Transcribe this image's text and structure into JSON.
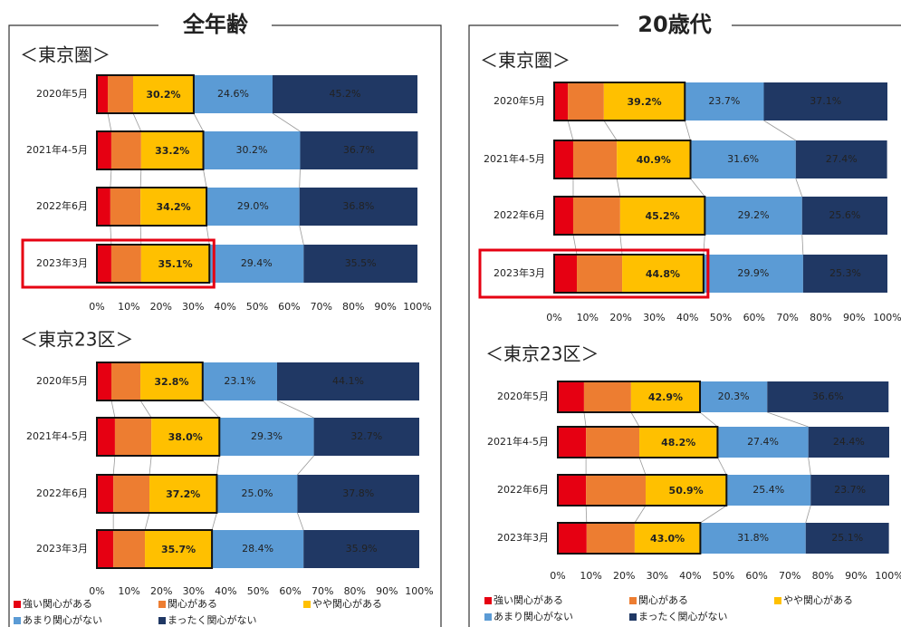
{
  "panel_titles": [
    "全年齢",
    "20歳代"
  ],
  "chart_data": [
    {
      "type": "stacked-bar-horizontal",
      "title": "＜東京圏＞",
      "highlight": 3,
      "categories": [
        "2020年5月",
        "2021年4-5月",
        "2022年6月",
        "2023年3月"
      ],
      "series": [
        {
          "name": "強い関心がある",
          "color": "#e60012",
          "values": [
            3.4,
            4.5,
            4.2,
            4.5
          ]
        },
        {
          "name": "関心がある",
          "color": "#ed7d31",
          "values": [
            7.9,
            9.3,
            9.4,
            9.3
          ]
        },
        {
          "name": "やや関心がある",
          "color": "#ffc000",
          "values": [
            18.9,
            19.4,
            20.6,
            21.3
          ]
        },
        {
          "name": "あまり関心がない",
          "color": "#5b9bd5",
          "values": [
            24.6,
            30.2,
            29.0,
            29.4
          ],
          "value_labels": [
            "24.6%",
            "30.2%",
            "29.0%",
            "29.4%"
          ]
        },
        {
          "name": "まったく関心がない",
          "color": "#203864",
          "values": [
            45.2,
            36.7,
            36.8,
            35.5
          ],
          "value_labels": [
            "45.2%",
            "36.7%",
            "36.8%",
            "35.5%"
          ]
        }
      ],
      "totals": {
        "values": [
          30.2,
          33.2,
          34.2,
          35.1
        ],
        "value_labels": [
          "30.2%",
          "33.2%",
          "34.2%",
          "35.1%"
        ]
      },
      "xlim": [
        0,
        100
      ],
      "xticks": [
        {
          "value": 0,
          "label": "0%"
        },
        {
          "value": 10,
          "label": "10%"
        },
        {
          "value": 20,
          "label": "20%"
        },
        {
          "value": 30,
          "label": "30%"
        },
        {
          "value": 40,
          "label": "40%"
        },
        {
          "value": 50,
          "label": "50%"
        },
        {
          "value": 60,
          "label": "60%"
        },
        {
          "value": 70,
          "label": "70%"
        },
        {
          "value": 80,
          "label": "80%"
        },
        {
          "value": 90,
          "label": "90%"
        },
        {
          "value": 100,
          "label": "100%"
        }
      ]
    },
    {
      "type": "stacked-bar-horizontal",
      "title": "＜東京23区＞",
      "categories": [
        "2020年5月",
        "2021年4-5月",
        "2022年6月",
        "2023年3月"
      ],
      "series": [
        {
          "name": "強い関心がある",
          "color": "#e60012",
          "values": [
            4.5,
            5.6,
            5.1,
            5.1
          ]
        },
        {
          "name": "関心がある",
          "color": "#ed7d31",
          "values": [
            9.0,
            11.3,
            11.2,
            9.8
          ]
        },
        {
          "name": "やや関心がある",
          "color": "#ffc000",
          "values": [
            19.3,
            21.1,
            20.9,
            20.8
          ]
        },
        {
          "name": "あまり関心がない",
          "color": "#5b9bd5",
          "values": [
            23.1,
            29.3,
            25.0,
            28.4
          ],
          "value_labels": [
            "23.1%",
            "29.3%",
            "25.0%",
            "28.4%"
          ]
        },
        {
          "name": "まったく関心がない",
          "color": "#203864",
          "values": [
            44.1,
            32.7,
            37.8,
            35.9
          ],
          "value_labels": [
            "44.1%",
            "32.7%",
            "37.8%",
            "35.9%"
          ]
        }
      ],
      "totals": {
        "values": [
          32.8,
          38.0,
          37.2,
          35.7
        ],
        "value_labels": [
          "32.8%",
          "38.0%",
          "37.2%",
          "35.7%"
        ]
      },
      "xlim": [
        0,
        100
      ],
      "xticks": [
        {
          "value": 0,
          "label": "0%"
        },
        {
          "value": 10,
          "label": "10%"
        },
        {
          "value": 20,
          "label": "20%"
        },
        {
          "value": 30,
          "label": "30%"
        },
        {
          "value": 40,
          "label": "40%"
        },
        {
          "value": 50,
          "label": "50%"
        },
        {
          "value": 60,
          "label": "60%"
        },
        {
          "value": 70,
          "label": "70%"
        },
        {
          "value": 80,
          "label": "80%"
        },
        {
          "value": 90,
          "label": "90%"
        },
        {
          "value": 100,
          "label": "100%"
        }
      ]
    },
    {
      "type": "stacked-bar-horizontal",
      "title": "＜東京圏＞",
      "highlight": 3,
      "categories": [
        "2020年5月",
        "2021年4-5月",
        "2022年6月",
        "2023年3月"
      ],
      "series": [
        {
          "name": "強い関心がある",
          "color": "#e60012",
          "values": [
            4.1,
            5.7,
            5.7,
            6.8
          ]
        },
        {
          "name": "関心がある",
          "color": "#ed7d31",
          "values": [
            10.8,
            13.1,
            14.1,
            13.6
          ]
        },
        {
          "name": "やや関心がある",
          "color": "#ffc000",
          "values": [
            24.3,
            22.1,
            25.4,
            24.4
          ]
        },
        {
          "name": "あまり関心がない",
          "color": "#5b9bd5",
          "values": [
            23.7,
            31.6,
            29.2,
            29.9
          ],
          "value_labels": [
            "23.7%",
            "31.6%",
            "29.2%",
            "29.9%"
          ]
        },
        {
          "name": "まったく関心がない",
          "color": "#203864",
          "values": [
            37.1,
            27.4,
            25.6,
            25.3
          ],
          "value_labels": [
            "37.1%",
            "27.4%",
            "25.6%",
            "25.3%"
          ]
        }
      ],
      "totals": {
        "values": [
          39.2,
          40.9,
          45.2,
          44.8
        ],
        "value_labels": [
          "39.2%",
          "40.9%",
          "45.2%",
          "44.8%"
        ]
      },
      "xlim": [
        0,
        100
      ],
      "xticks": [
        {
          "value": 0,
          "label": "0%"
        },
        {
          "value": 10,
          "label": "10%"
        },
        {
          "value": 20,
          "label": "20%"
        },
        {
          "value": 30,
          "label": "30%"
        },
        {
          "value": 40,
          "label": "40%"
        },
        {
          "value": 50,
          "label": "50%"
        },
        {
          "value": 60,
          "label": "60%"
        },
        {
          "value": 70,
          "label": "70%"
        },
        {
          "value": 80,
          "label": "80%"
        },
        {
          "value": 90,
          "label": "90%"
        },
        {
          "value": 100,
          "label": "100%"
        }
      ]
    },
    {
      "type": "stacked-bar-horizontal",
      "title": "＜東京23区＞",
      "categories": [
        "2020年5月",
        "2021年4-5月",
        "2022年6月",
        "2023年3月"
      ],
      "series": [
        {
          "name": "強い関心がある",
          "color": "#e60012",
          "values": [
            7.9,
            8.5,
            8.5,
            8.7
          ]
        },
        {
          "name": "関心がある",
          "color": "#ed7d31",
          "values": [
            14.2,
            16.1,
            18.0,
            14.5
          ]
        },
        {
          "name": "やや関心がある",
          "color": "#ffc000",
          "values": [
            20.8,
            23.6,
            24.4,
            19.8
          ]
        },
        {
          "name": "あまり関心がない",
          "color": "#5b9bd5",
          "values": [
            20.3,
            27.4,
            25.4,
            31.8
          ],
          "value_labels": [
            "20.3%",
            "27.4%",
            "25.4%",
            "31.8%"
          ]
        },
        {
          "name": "まったく関心がない",
          "color": "#203864",
          "values": [
            36.6,
            24.4,
            23.7,
            25.1
          ],
          "value_labels": [
            "36.6%",
            "24.4%",
            "23.7%",
            "25.1%"
          ]
        }
      ],
      "totals": {
        "values": [
          42.9,
          48.2,
          50.9,
          43.0
        ],
        "value_labels": [
          "42.9%",
          "48.2%",
          "50.9%",
          "43.0%"
        ]
      },
      "xlim": [
        0,
        100
      ],
      "xticks": [
        {
          "value": 0,
          "label": "0%"
        },
        {
          "value": 10,
          "label": "10%"
        },
        {
          "value": 20,
          "label": "20%"
        },
        {
          "value": 30,
          "label": "30%"
        },
        {
          "value": 40,
          "label": "40%"
        },
        {
          "value": 50,
          "label": "50%"
        },
        {
          "value": 60,
          "label": "60%"
        },
        {
          "value": 70,
          "label": "70%"
        },
        {
          "value": 80,
          "label": "80%"
        },
        {
          "value": 90,
          "label": "90%"
        },
        {
          "value": 100,
          "label": "100%"
        }
      ]
    }
  ]
}
